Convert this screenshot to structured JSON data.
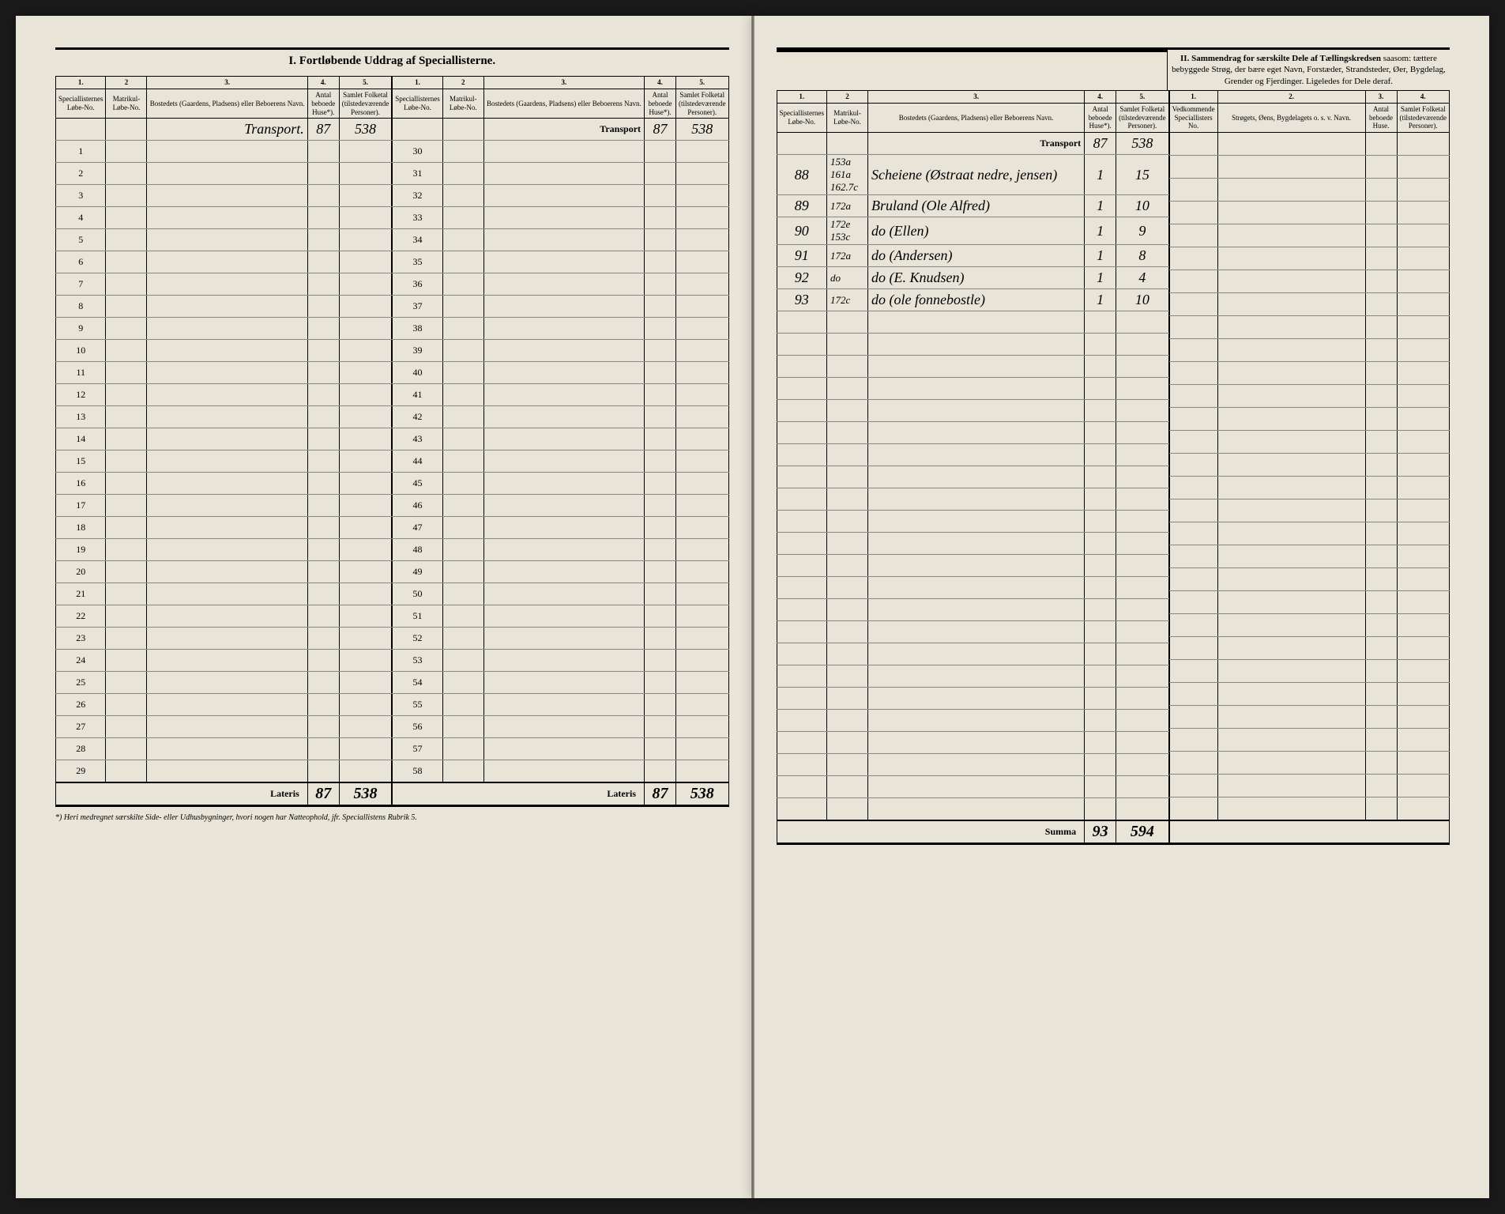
{
  "sectionI": {
    "title": "I. Fortløbende Uddrag af Speciallisterne.",
    "headers": {
      "c1n": "1.",
      "c2n": "2",
      "c3n": "3.",
      "c4n": "4.",
      "c5n": "5.",
      "c1": "Speciallisternes Løbe-No.",
      "c2": "Matrikul-Løbe-No.",
      "c3": "Bostedets (Gaardens, Pladsens) eller Beboerens Navn.",
      "c4": "Antal beboede Huse*).",
      "c5": "Samlet Folketal (tilstedeværende Personer)."
    },
    "transport_label": "Transport",
    "lateris_label": "Lateris",
    "footnote": "*) Heri medregnet særskilte Side- eller Udhusbygninger, hvori nogen har Natteophold, jfr. Speciallistens Rubrik 5."
  },
  "sectionII": {
    "title_bold": "II. Sammendrag for særskilte Dele af Tællingskredsen",
    "title_rest": " saasom: tættere bebyggede Strøg, der bære eget Navn, Forstæder, Strandsteder, Øer, Bygdelag, Grender og Fjerdinger. Ligeledes for Dele deraf.",
    "headers": {
      "c1n": "1.",
      "c2n": "2.",
      "c3n": "3.",
      "c4n": "4.",
      "c1": "Vedkommende Speciallisters No.",
      "c2": "Strøgets, Øens, Bygdelagets o. s. v. Navn.",
      "c3": "Antal beboede Huse.",
      "c4": "Samlet Folketal (tilstedeværende Personer)."
    },
    "summa_label": "Summa"
  },
  "leftPage": {
    "colA": {
      "transport": {
        "name": "Transport.",
        "huse": "87",
        "folk": "538"
      },
      "rows": [
        1,
        2,
        3,
        4,
        5,
        6,
        7,
        8,
        9,
        10,
        11,
        12,
        13,
        14,
        15,
        16,
        17,
        18,
        19,
        20,
        21,
        22,
        23,
        24,
        25,
        26,
        27,
        28,
        29
      ],
      "lateris": {
        "huse": "87",
        "folk": "538"
      }
    },
    "colB": {
      "transport": {
        "huse": "87",
        "folk": "538"
      },
      "rows": [
        30,
        31,
        32,
        33,
        34,
        35,
        36,
        37,
        38,
        39,
        40,
        41,
        42,
        43,
        44,
        45,
        46,
        47,
        48,
        49,
        50,
        51,
        52,
        53,
        54,
        55,
        56,
        57,
        58
      ],
      "lateris": {
        "huse": "87",
        "folk": "538"
      }
    }
  },
  "rightPage": {
    "sec1": {
      "transport": {
        "huse": "87",
        "folk": "538"
      },
      "rows": [
        {
          "no": "88",
          "mat": "153a 161a 162.7c",
          "name": "Scheiene (Østraat nedre, jensen)",
          "huse": "1",
          "folk": "15"
        },
        {
          "no": "89",
          "mat": "172a",
          "name": "Bruland (Ole Alfred)",
          "huse": "1",
          "folk": "10"
        },
        {
          "no": "90",
          "mat": "172e 153c",
          "name": "do (Ellen)",
          "huse": "1",
          "folk": "9"
        },
        {
          "no": "91",
          "mat": "172a",
          "name": "do (Andersen)",
          "huse": "1",
          "folk": "8"
        },
        {
          "no": "92",
          "mat": "do",
          "name": "do (E. Knudsen)",
          "huse": "1",
          "folk": "4"
        },
        {
          "no": "93",
          "mat": "172c",
          "name": "do (ole fonnebostle)",
          "huse": "1",
          "folk": "10"
        }
      ],
      "summa": {
        "huse": "93",
        "folk": "594"
      }
    }
  }
}
